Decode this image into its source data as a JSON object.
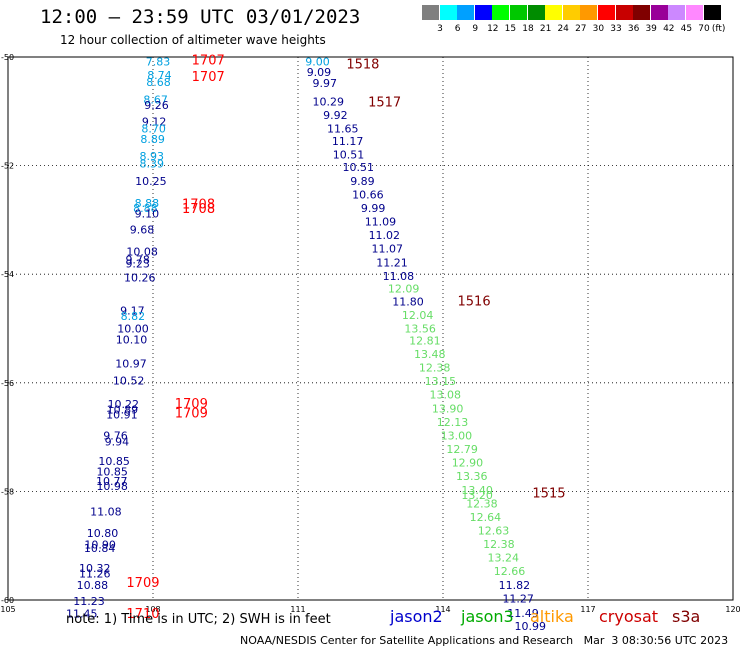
{
  "header": {
    "title": "12:00 — 23:59 UTC 03/01/2023",
    "subtitle": "12 hour collection of altimeter wave heights"
  },
  "legend": {
    "unit_label": "(ft)",
    "bins": [
      {
        "label": "3",
        "color": "#7f7f7f"
      },
      {
        "label": "6",
        "color": "#00ffff"
      },
      {
        "label": "9",
        "color": "#00a0ff"
      },
      {
        "label": "12",
        "color": "#0000ff"
      },
      {
        "label": "15",
        "color": "#00ff00"
      },
      {
        "label": "18",
        "color": "#00c800"
      },
      {
        "label": "21",
        "color": "#008c00"
      },
      {
        "label": "24",
        "color": "#ffff00"
      },
      {
        "label": "27",
        "color": "#ffcc00"
      },
      {
        "label": "30",
        "color": "#ff9900"
      },
      {
        "label": "33",
        "color": "#ff0000"
      },
      {
        "label": "36",
        "color": "#c80000"
      },
      {
        "label": "39",
        "color": "#800000"
      },
      {
        "label": "42",
        "color": "#990099"
      },
      {
        "label": "45",
        "color": "#cc88ff"
      },
      {
        "label": "70",
        "color": "#ff88ff"
      },
      {
        "label": "",
        "color": "#000000"
      }
    ]
  },
  "map": {
    "lon_ticks": [
      "105",
      "108",
      "111",
      "114",
      "117",
      "120"
    ],
    "lat_ticks": [
      "-50",
      "-52",
      "-54",
      "-56",
      "-58",
      "-60"
    ],
    "lon_range": [
      105,
      120
    ],
    "lat_range": [
      -50,
      -60
    ],
    "grid": "dotted"
  },
  "satellites": [
    {
      "name": "jason2",
      "color": "#0000cc"
    },
    {
      "name": "jason3",
      "color": "#00aa00"
    },
    {
      "name": "altika",
      "color": "#ff9900"
    },
    {
      "name": "cryosat",
      "color": "#cc0000"
    },
    {
      "name": "s3a",
      "color": "#800000"
    }
  ],
  "colors": {
    "navy": "#00008b",
    "cyan": "#00a0e0",
    "green": "#66dd66",
    "red": "#ff0000",
    "maroon": "#800000"
  },
  "chart_data": {
    "type": "scatter",
    "title": "12:00 — 23:59 UTC 03/01/2023",
    "subtitle": "12 hour collection of altimeter wave heights",
    "x_unit": "deg E",
    "y_unit": "deg N",
    "xlim": [
      105,
      120
    ],
    "ylim": [
      -60,
      -50
    ],
    "points": [
      {
        "lon": 107.85,
        "lat": -50.08,
        "v": "7.83",
        "c": "cyan"
      },
      {
        "lon": 107.88,
        "lat": -50.33,
        "v": "8.74",
        "c": "cyan"
      },
      {
        "lon": 107.86,
        "lat": -50.46,
        "v": "8.68",
        "c": "cyan"
      },
      {
        "lon": 107.8,
        "lat": -50.78,
        "v": "8.67",
        "c": "cyan"
      },
      {
        "lon": 107.82,
        "lat": -50.88,
        "v": "9.26",
        "c": "navy"
      },
      {
        "lon": 107.77,
        "lat": -51.19,
        "v": "9.12",
        "c": "navy"
      },
      {
        "lon": 107.76,
        "lat": -51.32,
        "v": "8.70",
        "c": "cyan"
      },
      {
        "lon": 107.74,
        "lat": -51.51,
        "v": "8.89",
        "c": "cyan"
      },
      {
        "lon": 107.72,
        "lat": -51.82,
        "v": "8.93",
        "c": "cyan"
      },
      {
        "lon": 107.72,
        "lat": -51.96,
        "v": "8.39",
        "c": "cyan"
      },
      {
        "lon": 107.63,
        "lat": -52.28,
        "v": "10.25",
        "c": "navy"
      },
      {
        "lon": 107.62,
        "lat": -52.69,
        "v": "8.88",
        "c": "cyan"
      },
      {
        "lon": 107.59,
        "lat": -52.78,
        "v": "8.88",
        "c": "cyan"
      },
      {
        "lon": 107.62,
        "lat": -52.88,
        "v": "9.10",
        "c": "navy"
      },
      {
        "lon": 107.52,
        "lat": -53.18,
        "v": "9.68",
        "c": "navy"
      },
      {
        "lon": 107.45,
        "lat": -53.58,
        "v": "10.08",
        "c": "navy"
      },
      {
        "lon": 107.43,
        "lat": -53.73,
        "v": "9.78",
        "c": "navy"
      },
      {
        "lon": 107.43,
        "lat": -53.8,
        "v": "9.23",
        "c": "navy"
      },
      {
        "lon": 107.4,
        "lat": -54.06,
        "v": "10.26",
        "c": "navy"
      },
      {
        "lon": 107.32,
        "lat": -54.67,
        "v": "9.17",
        "c": "navy"
      },
      {
        "lon": 107.33,
        "lat": -54.77,
        "v": "8.82",
        "c": "cyan"
      },
      {
        "lon": 107.26,
        "lat": -55.0,
        "v": "10.00",
        "c": "navy"
      },
      {
        "lon": 107.23,
        "lat": -55.2,
        "v": "10.10",
        "c": "navy"
      },
      {
        "lon": 107.22,
        "lat": -55.64,
        "v": "10.97",
        "c": "navy"
      },
      {
        "lon": 107.17,
        "lat": -55.96,
        "v": "10.52",
        "c": "navy"
      },
      {
        "lon": 107.06,
        "lat": -56.39,
        "v": "10.22",
        "c": "navy"
      },
      {
        "lon": 107.04,
        "lat": -56.49,
        "v": "10.89",
        "c": "navy"
      },
      {
        "lon": 107.03,
        "lat": -56.58,
        "v": "10.91",
        "c": "navy"
      },
      {
        "lon": 106.97,
        "lat": -56.97,
        "v": "9.76",
        "c": "navy"
      },
      {
        "lon": 107.0,
        "lat": -57.08,
        "v": "9.94",
        "c": "navy"
      },
      {
        "lon": 106.87,
        "lat": -57.44,
        "v": "10.85",
        "c": "navy"
      },
      {
        "lon": 106.83,
        "lat": -57.63,
        "v": "10.85",
        "c": "navy"
      },
      {
        "lon": 106.82,
        "lat": -57.81,
        "v": "10.77",
        "c": "navy"
      },
      {
        "lon": 106.83,
        "lat": -57.9,
        "v": "10.98",
        "c": "navy"
      },
      {
        "lon": 106.7,
        "lat": -58.37,
        "v": "11.08",
        "c": "navy"
      },
      {
        "lon": 106.63,
        "lat": -58.77,
        "v": "10.80",
        "c": "navy"
      },
      {
        "lon": 106.58,
        "lat": -58.98,
        "v": "10.90",
        "c": "navy"
      },
      {
        "lon": 106.57,
        "lat": -59.04,
        "v": "10.84",
        "c": "navy"
      },
      {
        "lon": 106.47,
        "lat": -59.41,
        "v": "10.32",
        "c": "navy"
      },
      {
        "lon": 106.47,
        "lat": -59.51,
        "v": "11.26",
        "c": "navy"
      },
      {
        "lon": 106.42,
        "lat": -59.72,
        "v": "10.88",
        "c": "navy"
      },
      {
        "lon": 106.35,
        "lat": -60.02,
        "v": "11.23",
        "c": "navy"
      },
      {
        "lon": 106.2,
        "lat": -60.25,
        "v": "11.45",
        "c": "navy"
      },
      {
        "lon": 111.15,
        "lat": -50.08,
        "v": "9.00",
        "c": "cyan"
      },
      {
        "lon": 111.18,
        "lat": -50.28,
        "v": "9.09",
        "c": "navy"
      },
      {
        "lon": 111.3,
        "lat": -50.48,
        "v": "9.97",
        "c": "navy"
      },
      {
        "lon": 111.3,
        "lat": -50.82,
        "v": "10.29",
        "c": "navy"
      },
      {
        "lon": 111.52,
        "lat": -51.07,
        "v": "9.92",
        "c": "navy"
      },
      {
        "lon": 111.6,
        "lat": -51.32,
        "v": "11.65",
        "c": "navy"
      },
      {
        "lon": 111.7,
        "lat": -51.55,
        "v": "11.17",
        "c": "navy"
      },
      {
        "lon": 111.72,
        "lat": -51.8,
        "v": "10.51",
        "c": "navy"
      },
      {
        "lon": 111.92,
        "lat": -52.03,
        "v": "10.51",
        "c": "navy"
      },
      {
        "lon": 112.08,
        "lat": -52.28,
        "v": "9.89",
        "c": "navy"
      },
      {
        "lon": 112.12,
        "lat": -52.53,
        "v": "10.66",
        "c": "navy"
      },
      {
        "lon": 112.3,
        "lat": -52.78,
        "v": "9.99",
        "c": "navy"
      },
      {
        "lon": 112.38,
        "lat": -53.03,
        "v": "11.09",
        "c": "navy"
      },
      {
        "lon": 112.46,
        "lat": -53.28,
        "v": "11.02",
        "c": "navy"
      },
      {
        "lon": 112.52,
        "lat": -53.53,
        "v": "11.07",
        "c": "navy"
      },
      {
        "lon": 112.62,
        "lat": -53.78,
        "v": "11.21",
        "c": "navy"
      },
      {
        "lon": 112.75,
        "lat": -54.03,
        "v": "11.08",
        "c": "navy"
      },
      {
        "lon": 112.86,
        "lat": -54.26,
        "v": "12.09",
        "c": "green"
      },
      {
        "lon": 112.95,
        "lat": -54.5,
        "v": "11.80",
        "c": "navy"
      },
      {
        "lon": 113.15,
        "lat": -54.75,
        "v": "12.04",
        "c": "green"
      },
      {
        "lon": 113.2,
        "lat": -55.0,
        "v": "13.56",
        "c": "green"
      },
      {
        "lon": 113.3,
        "lat": -55.22,
        "v": "12.81",
        "c": "green"
      },
      {
        "lon": 113.4,
        "lat": -55.47,
        "v": "13.48",
        "c": "green"
      },
      {
        "lon": 113.5,
        "lat": -55.72,
        "v": "12.38",
        "c": "green"
      },
      {
        "lon": 113.62,
        "lat": -55.97,
        "v": "13.15",
        "c": "green"
      },
      {
        "lon": 113.72,
        "lat": -56.22,
        "v": "13.08",
        "c": "green"
      },
      {
        "lon": 113.77,
        "lat": -56.47,
        "v": "13.90",
        "c": "green"
      },
      {
        "lon": 113.87,
        "lat": -56.72,
        "v": "12.13",
        "c": "green"
      },
      {
        "lon": 113.95,
        "lat": -56.97,
        "v": "13.00",
        "c": "green"
      },
      {
        "lon": 114.07,
        "lat": -57.22,
        "v": "12.79",
        "c": "green"
      },
      {
        "lon": 114.18,
        "lat": -57.47,
        "v": "12.90",
        "c": "green"
      },
      {
        "lon": 114.27,
        "lat": -57.72,
        "v": "13.36",
        "c": "green"
      },
      {
        "lon": 114.38,
        "lat": -57.97,
        "v": "13.40",
        "c": "green"
      },
      {
        "lon": 114.38,
        "lat": -58.07,
        "v": "13.20",
        "c": "green"
      },
      {
        "lon": 114.48,
        "lat": -58.22,
        "v": "12.38",
        "c": "green"
      },
      {
        "lon": 114.55,
        "lat": -58.47,
        "v": "12.64",
        "c": "green"
      },
      {
        "lon": 114.72,
        "lat": -58.72,
        "v": "12.63",
        "c": "green"
      },
      {
        "lon": 114.83,
        "lat": -58.97,
        "v": "12.38",
        "c": "green"
      },
      {
        "lon": 114.92,
        "lat": -59.22,
        "v": "13.24",
        "c": "green"
      },
      {
        "lon": 115.05,
        "lat": -59.47,
        "v": "12.66",
        "c": "green"
      },
      {
        "lon": 115.15,
        "lat": -59.72,
        "v": "11.82",
        "c": "navy"
      },
      {
        "lon": 115.23,
        "lat": -59.97,
        "v": "11.27",
        "c": "navy"
      },
      {
        "lon": 115.33,
        "lat": -60.24,
        "v": "11.49",
        "c": "navy"
      },
      {
        "lon": 115.48,
        "lat": -60.48,
        "v": "10.99",
        "c": "navy"
      }
    ],
    "time_labels": [
      {
        "lon": 108.8,
        "lat": -50.05,
        "t": "1707",
        "c": "red"
      },
      {
        "lon": 108.8,
        "lat": -50.35,
        "t": "1707",
        "c": "red"
      },
      {
        "lon": 108.6,
        "lat": -52.7,
        "t": "1708",
        "c": "red"
      },
      {
        "lon": 108.6,
        "lat": -52.78,
        "t": "1708",
        "c": "red"
      },
      {
        "lon": 108.45,
        "lat": -56.37,
        "t": "1709",
        "c": "red"
      },
      {
        "lon": 108.45,
        "lat": -56.55,
        "t": "1709",
        "c": "red"
      },
      {
        "lon": 107.45,
        "lat": -59.67,
        "t": "1709",
        "c": "red"
      },
      {
        "lon": 107.45,
        "lat": -60.24,
        "t": "1710",
        "c": "red"
      },
      {
        "lon": 112.0,
        "lat": -50.12,
        "t": "1518",
        "c": "maroon"
      },
      {
        "lon": 112.45,
        "lat": -50.82,
        "t": "1517",
        "c": "maroon"
      },
      {
        "lon": 114.3,
        "lat": -54.48,
        "t": "1516",
        "c": "maroon"
      },
      {
        "lon": 115.85,
        "lat": -58.02,
        "t": "1515",
        "c": "maroon"
      }
    ]
  },
  "notes": {
    "note_text": "note: 1) Time is in UTC; 2) SWH is in feet",
    "footer_text": "NOAA/NESDIS Center for Satellite Applications and Research   Mar  3 08:30:56 UTC 2023"
  }
}
